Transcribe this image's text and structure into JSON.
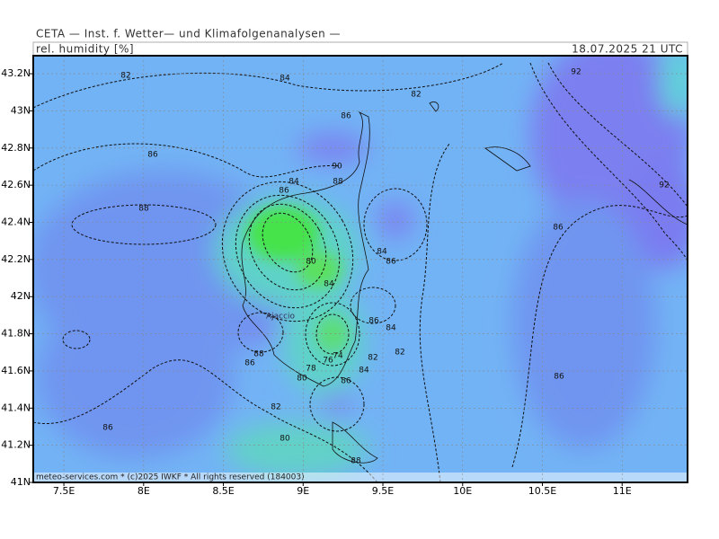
{
  "header": {
    "institute": "CETA — Inst. f. Wetter— und Klimafolgenanalysen —",
    "parameter": "rel. humidity [%]",
    "valid_time": "18.07.2025 21 UTC"
  },
  "map": {
    "lon_range": [
      7.308,
      11.41
    ],
    "lat_range": [
      41.0,
      43.297
    ],
    "lon_ticks": [
      {
        "value": 7.5,
        "label": "7.5E"
      },
      {
        "value": 8,
        "label": "8E"
      },
      {
        "value": 8.5,
        "label": "8.5E"
      },
      {
        "value": 9,
        "label": "9E"
      },
      {
        "value": 9.5,
        "label": "9.5E"
      },
      {
        "value": 10,
        "label": "10E"
      },
      {
        "value": 10.5,
        "label": "10.5E"
      },
      {
        "value": 11,
        "label": "11E"
      }
    ],
    "lat_ticks": [
      {
        "value": 41,
        "label": "41N"
      },
      {
        "value": 41.2,
        "label": "41.2N"
      },
      {
        "value": 41.4,
        "label": "41.4N"
      },
      {
        "value": 41.6,
        "label": "41.6N"
      },
      {
        "value": 41.8,
        "label": "41.8N"
      },
      {
        "value": 42,
        "label": "42N"
      },
      {
        "value": 42.2,
        "label": "42.2N"
      },
      {
        "value": 42.4,
        "label": "42.4N"
      },
      {
        "value": 42.6,
        "label": "42.6N"
      },
      {
        "value": 42.8,
        "label": "42.8N"
      },
      {
        "value": 43,
        "label": "43N"
      },
      {
        "value": 43.2,
        "label": "43.2N"
      }
    ],
    "contour_labels": [
      82,
      84,
      82,
      92,
      86,
      86,
      90,
      88,
      84,
      86,
      88,
      92,
      86,
      84,
      86,
      80,
      84,
      86,
      84,
      88,
      86,
      82,
      82,
      84,
      78,
      80,
      86,
      74,
      76,
      86,
      86,
      82,
      80,
      88
    ],
    "places": [
      "Ajaccio"
    ]
  },
  "footer": {
    "copyright": "meteo-services.com * (c)2025 IWKF * All rights reserved (184003)"
  }
}
